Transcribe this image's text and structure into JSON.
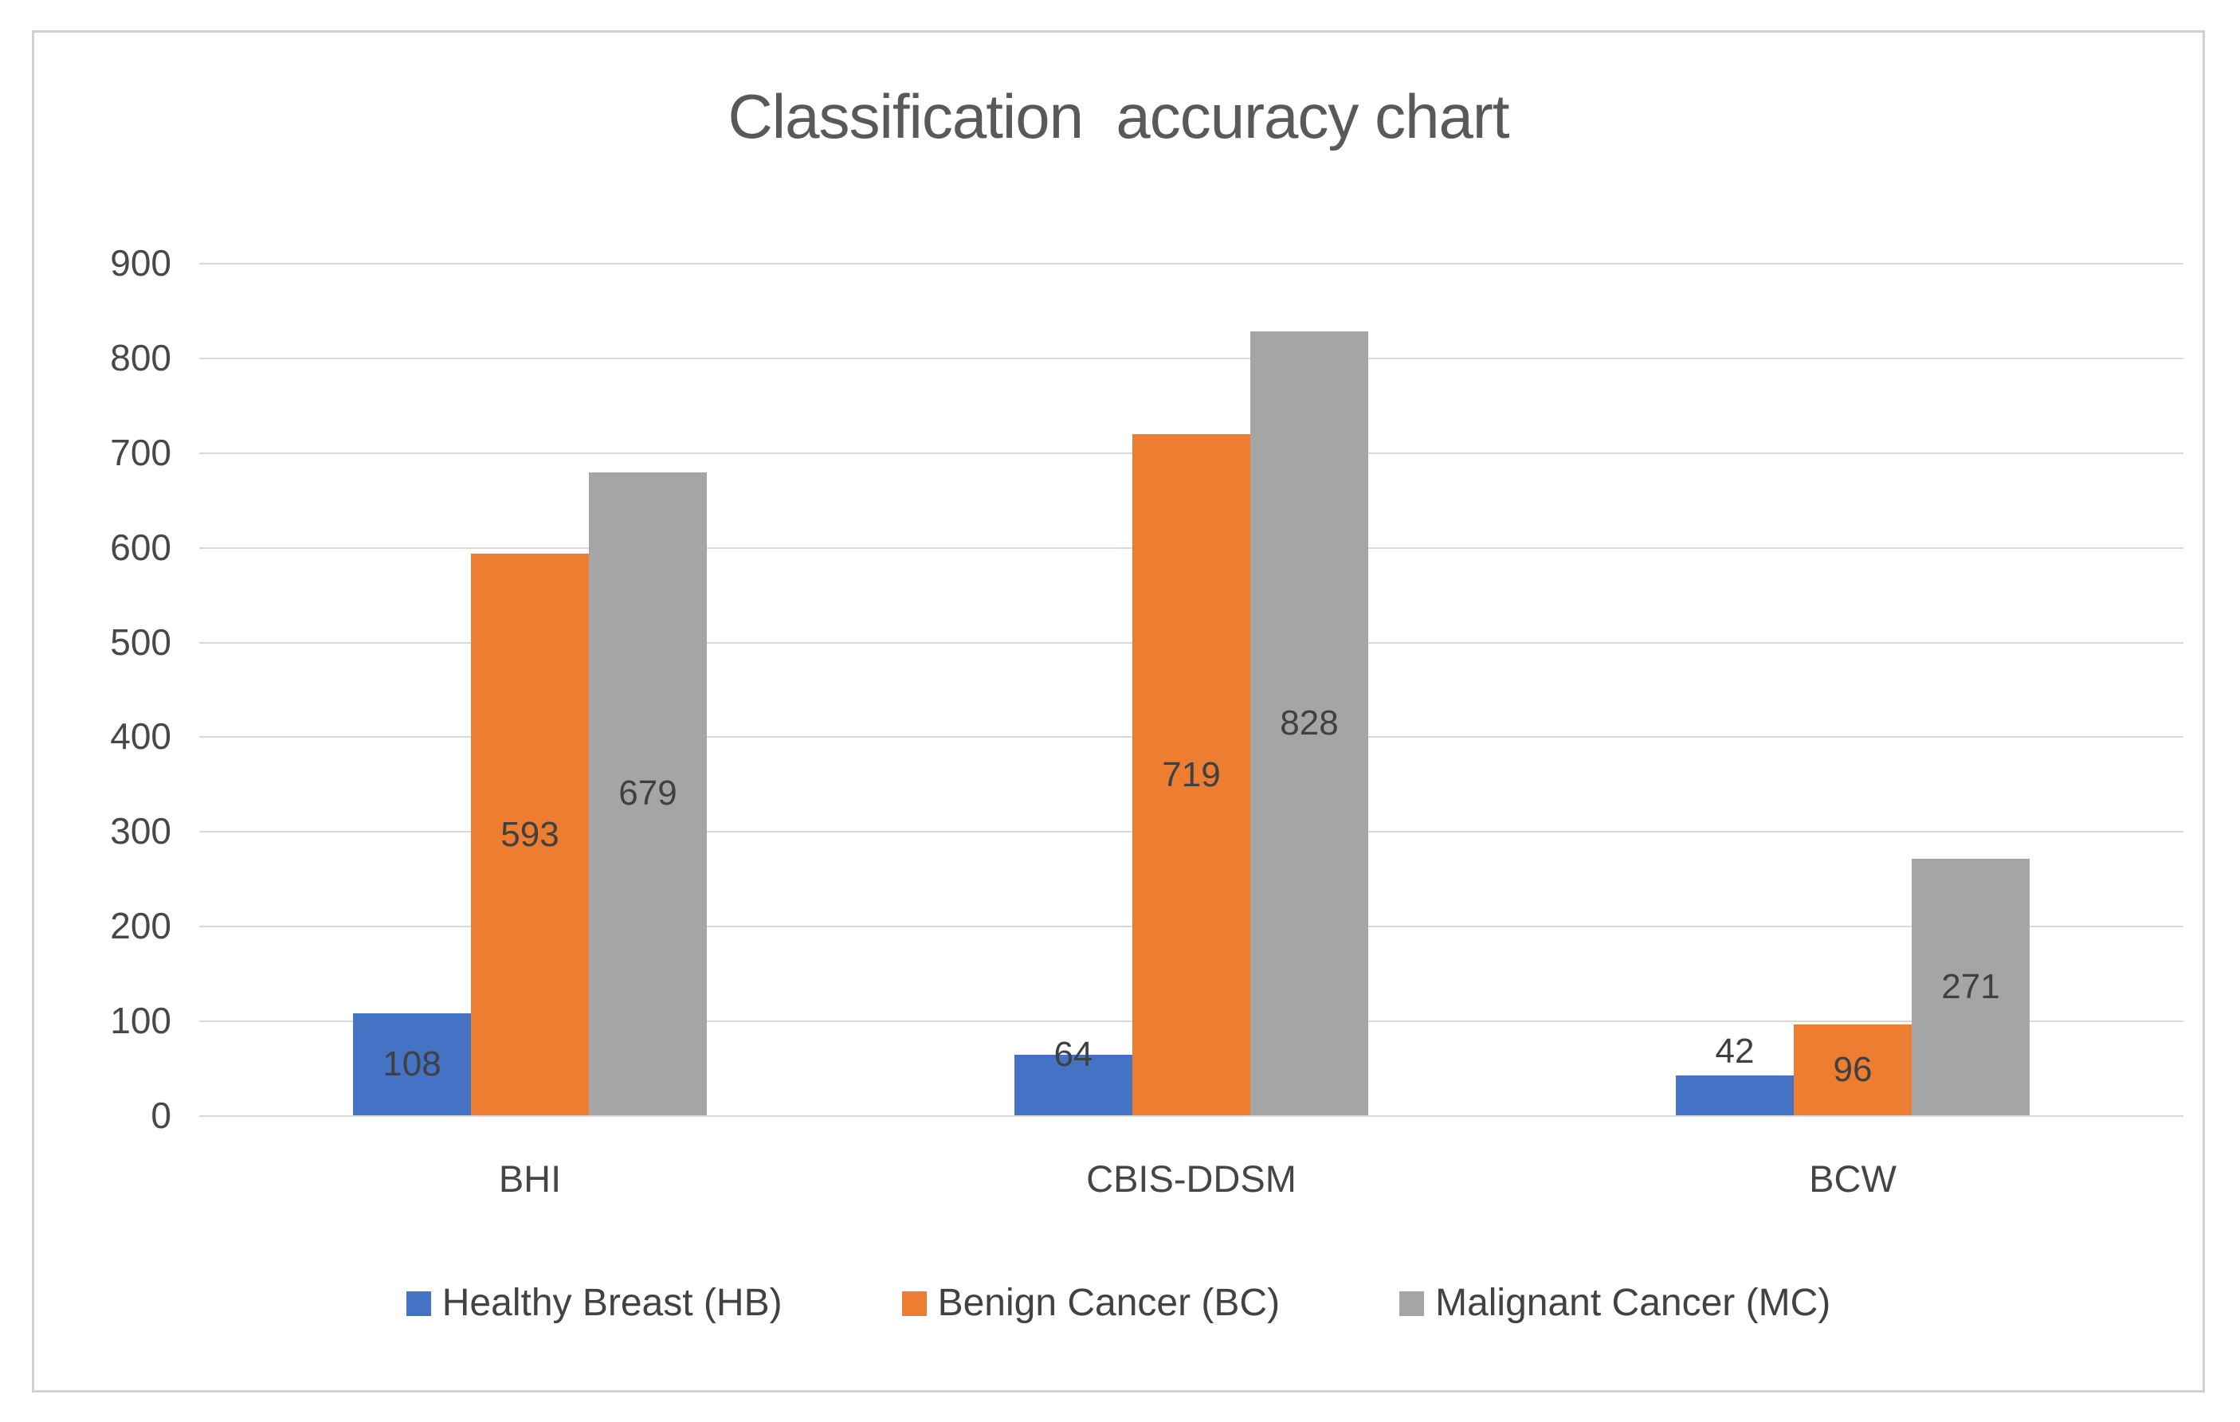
{
  "title": "Classification  accuracy chart",
  "colors": {
    "background": "#ffffff",
    "frame_border": "#d1d1d1",
    "gridline": "#d9d9d9",
    "title_text": "#595959",
    "axis_text": "#484848",
    "label_text": "#404040",
    "series_blue": "#4472C4",
    "series_orange": "#ED7D31",
    "series_gray": "#A5A5A5"
  },
  "chart_data": {
    "type": "bar",
    "title": "Classification  accuracy chart",
    "xlabel": "",
    "ylabel": "",
    "categories": [
      "BHI",
      "CBIS-DDSM",
      "BCW"
    ],
    "series": [
      {
        "name": "Healthy Breast (HB)",
        "color": "#4472C4",
        "values": [
          108,
          64,
          42
        ]
      },
      {
        "name": "Benign Cancer (BC)",
        "color": "#ED7D31",
        "values": [
          593,
          719,
          96
        ]
      },
      {
        "name": "Malignant Cancer (MC)",
        "color": "#A5A5A5",
        "values": [
          679,
          828,
          271
        ]
      }
    ],
    "data_labels": [
      {
        "category": "BHI",
        "values": [
          108,
          593,
          679
        ]
      },
      {
        "category": "CBIS-DDSM",
        "values": [
          64,
          719,
          828
        ]
      },
      {
        "category": "BCW",
        "values": [
          42,
          96,
          271
        ]
      }
    ],
    "y_axis": {
      "min": 0,
      "max": 900,
      "step": 100,
      "ticks": [
        900,
        800,
        700,
        600,
        500,
        400,
        300,
        200,
        100,
        0
      ]
    },
    "grid": true,
    "legend_position": "bottom"
  }
}
